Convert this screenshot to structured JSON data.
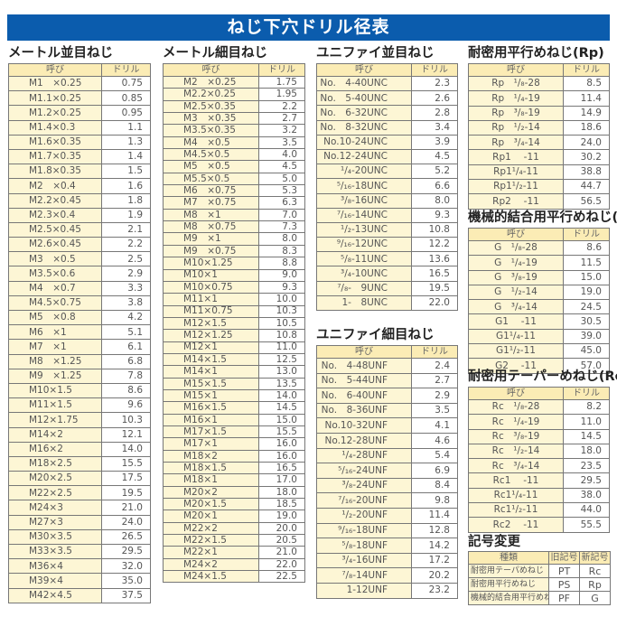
{
  "title": "ねじ下穴ドリル径表",
  "header_labels": {
    "name": "呼び",
    "drill": "ドリル"
  },
  "colors": {
    "banner": "#0b5cad",
    "name_cell": "#fdf6d5",
    "header_cell": "#fbecb5"
  },
  "tables": [
    {
      "id": "metric-coarse",
      "title": "メートル並目ねじ",
      "rows": [
        [
          "M1　×0.25",
          "0.75"
        ],
        [
          "M1.1×0.25",
          "0.85"
        ],
        [
          "M1.2×0.25",
          "0.95"
        ],
        [
          "M1.4×0.3",
          "1.1"
        ],
        [
          "M1.6×0.35",
          "1.3"
        ],
        [
          "M1.7×0.35",
          "1.4"
        ],
        [
          "M1.8×0.35",
          "1.5"
        ],
        [
          "M2　×0.4",
          "1.6"
        ],
        [
          "M2.2×0.45",
          "1.8"
        ],
        [
          "M2.3×0.4",
          "1.9"
        ],
        [
          "M2.5×0.45",
          "2.1"
        ],
        [
          "M2.6×0.45",
          "2.2"
        ],
        [
          "M3　×0.5",
          "2.5"
        ],
        [
          "M3.5×0.6",
          "2.9"
        ],
        [
          "M4　×0.7",
          "3.3"
        ],
        [
          "M4.5×0.75",
          "3.8"
        ],
        [
          "M5　×0.8",
          "4.2"
        ],
        [
          "M6　×1",
          "5.1"
        ],
        [
          "M7　×1",
          "6.1"
        ],
        [
          "M8　×1.25",
          "6.8"
        ],
        [
          "M9　×1.25",
          "7.8"
        ],
        [
          "M10×1.5",
          "8.6"
        ],
        [
          "M11×1.5",
          "9.6"
        ],
        [
          "M12×1.75",
          "10.3"
        ],
        [
          "M14×2",
          "12.1"
        ],
        [
          "M16×2",
          "14.0"
        ],
        [
          "M18×2.5",
          "15.5"
        ],
        [
          "M20×2.5",
          "17.5"
        ],
        [
          "M22×2.5",
          "19.5"
        ],
        [
          "M24×3",
          "21.0"
        ],
        [
          "M27×3",
          "24.0"
        ],
        [
          "M30×3.5",
          "26.5"
        ],
        [
          "M33×3.5",
          "29.5"
        ],
        [
          "M36×4",
          "32.0"
        ],
        [
          "M39×4",
          "35.0"
        ],
        [
          "M42×4.5",
          "37.5"
        ]
      ]
    },
    {
      "id": "metric-fine",
      "title": "メートル細目ねじ",
      "rows": [
        [
          "M2　×0.25",
          "1.75"
        ],
        [
          "M2.2×0.25",
          "1.95"
        ],
        [
          "M2.5×0.35",
          "2.2"
        ],
        [
          "M3　×0.35",
          "2.7"
        ],
        [
          "M3.5×0.35",
          "3.2"
        ],
        [
          "M4　×0.5",
          "3.5"
        ],
        [
          "M4.5×0.5",
          "4.0"
        ],
        [
          "M5　×0.5",
          "4.5"
        ],
        [
          "M5.5×0.5",
          "5.0"
        ],
        [
          "M6　×0.75",
          "5.3"
        ],
        [
          "M7　×0.75",
          "6.3"
        ],
        [
          "M8　×1",
          "7.0"
        ],
        [
          "M8　×0.75",
          "7.3"
        ],
        [
          "M9　×1",
          "8.0"
        ],
        [
          "M9　×0.75",
          "8.3"
        ],
        [
          "M10×1.25",
          "8.8"
        ],
        [
          "M10×1",
          "9.0"
        ],
        [
          "M10×0.75",
          "9.3"
        ],
        [
          "M11×1",
          "10.0"
        ],
        [
          "M11×0.75",
          "10.3"
        ],
        [
          "M12×1.5",
          "10.5"
        ],
        [
          "M12×1.25",
          "10.8"
        ],
        [
          "M12×1",
          "11.0"
        ],
        [
          "M14×1.5",
          "12.5"
        ],
        [
          "M14×1",
          "13.0"
        ],
        [
          "M15×1.5",
          "13.5"
        ],
        [
          "M15×1",
          "14.0"
        ],
        [
          "M16×1.5",
          "14.5"
        ],
        [
          "M16×1",
          "15.0"
        ],
        [
          "M17×1.5",
          "15.5"
        ],
        [
          "M17×1",
          "16.0"
        ],
        [
          "M18×2",
          "16.0"
        ],
        [
          "M18×1.5",
          "16.5"
        ],
        [
          "M18×1",
          "17.0"
        ],
        [
          "M20×2",
          "18.0"
        ],
        [
          "M20×1.5",
          "18.5"
        ],
        [
          "M20×1",
          "19.0"
        ],
        [
          "M22×2",
          "20.0"
        ],
        [
          "M22×1.5",
          "20.5"
        ],
        [
          "M22×1",
          "21.0"
        ],
        [
          "M24×2",
          "22.0"
        ],
        [
          "M24×1.5",
          "22.5"
        ]
      ]
    },
    {
      "id": "unc",
      "title": "ユニファイ並目ねじ",
      "rows": [
        [
          "No.　4-40UNC",
          "2.3"
        ],
        [
          "No.　5-40UNC",
          "2.6"
        ],
        [
          "No.　6-32UNC",
          "2.8"
        ],
        [
          "No.　8-32UNC",
          "3.4"
        ],
        [
          "No.10-24UNC",
          "3.9"
        ],
        [
          "No.12-24UNC",
          "4.5"
        ],
        [
          "¹/₄-20UNC",
          "5.2"
        ],
        [
          "⁵/₁₆-18UNC",
          "6.6"
        ],
        [
          "³/₈-16UNC",
          "8.0"
        ],
        [
          "⁷/₁₆-14UNC",
          "9.3"
        ],
        [
          "¹/₂-13UNC",
          "10.8"
        ],
        [
          "⁹/₁₆-12UNC",
          "12.2"
        ],
        [
          "⁵/₈-11UNC",
          "13.6"
        ],
        [
          "³/₄-10UNC",
          "16.5"
        ],
        [
          "⁷/₈-　9UNC",
          "19.5"
        ],
        [
          "1-　8UNC",
          "22.0"
        ]
      ]
    },
    {
      "id": "unf",
      "title": "ユニファイ細目ねじ",
      "rows": [
        [
          "No.　4-48UNF",
          "2.4"
        ],
        [
          "No.　5-44UNF",
          "2.7"
        ],
        [
          "No.　6-40UNF",
          "2.9"
        ],
        [
          "No.　8-36UNF",
          "3.5"
        ],
        [
          "No.10-32UNF",
          "4.1"
        ],
        [
          "No.12-28UNF",
          "4.6"
        ],
        [
          "¹/₄-28UNF",
          "5.4"
        ],
        [
          "⁵/₁₆-24UNF",
          "6.9"
        ],
        [
          "³/₈-24UNF",
          "8.4"
        ],
        [
          "⁷/₁₆-20UNF",
          "9.8"
        ],
        [
          "¹/₂-20UNF",
          "11.4"
        ],
        [
          "⁹/₁₆-18UNF",
          "12.8"
        ],
        [
          "⁵/₈-18UNF",
          "14.2"
        ],
        [
          "³/₄-16UNF",
          "17.2"
        ],
        [
          "⁷/₈-14UNF",
          "20.2"
        ],
        [
          "1-12UNF",
          "23.2"
        ]
      ]
    },
    {
      "id": "rp",
      "title": "耐密用平行めねじ(Rp)",
      "rows": [
        [
          "Rp　¹/₈-28",
          "8.5"
        ],
        [
          "Rp　¹/₄-19",
          "11.4"
        ],
        [
          "Rp　³/₈-19",
          "14.9"
        ],
        [
          "Rp　¹/₂-14",
          "18.6"
        ],
        [
          "Rp　³/₄-14",
          "24.0"
        ],
        [
          "Rp1　 -11",
          "30.2"
        ],
        [
          "Rp1¹/₄-11",
          "38.8"
        ],
        [
          "Rp1¹/₂-11",
          "44.7"
        ],
        [
          "Rp2　 -11",
          "56.5"
        ]
      ]
    },
    {
      "id": "g",
      "title": "機械的結合用平行めねじ(G)",
      "rows": [
        [
          "G　¹/₈-28",
          "8.6"
        ],
        [
          "G　¹/₄-19",
          "11.5"
        ],
        [
          "G　³/₈-19",
          "15.0"
        ],
        [
          "G　¹/₂-14",
          "19.0"
        ],
        [
          "G　³/₄-14",
          "24.5"
        ],
        [
          "G1　 -11",
          "30.5"
        ],
        [
          "G1¹/₄-11",
          "39.0"
        ],
        [
          "G1¹/₂-11",
          "45.0"
        ],
        [
          "G2　 -11",
          "57.0"
        ]
      ]
    },
    {
      "id": "rc",
      "title": "耐密用テーパーめねじ(Rc)",
      "rows": [
        [
          "Rc　¹/₈-28",
          "8.2"
        ],
        [
          "Rc　¹/₄-19",
          "11.0"
        ],
        [
          "Rc　³/₈-19",
          "14.5"
        ],
        [
          "Rc　¹/₂-14",
          "18.0"
        ],
        [
          "Rc　³/₄-14",
          "23.5"
        ],
        [
          "Rc1　 -11",
          "29.5"
        ],
        [
          "Rc1¹/₄-11",
          "38.0"
        ],
        [
          "Rc1¹/₂-11",
          "44.0"
        ],
        [
          "Rc2　 -11",
          "55.5"
        ]
      ]
    }
  ],
  "symbol_change": {
    "title": "記号変更",
    "headers": [
      "種類",
      "旧記号",
      "新記号"
    ],
    "rows": [
      [
        "耐密用テーパめねじ",
        "PT",
        "Rc"
      ],
      [
        "耐密用平行めねじ",
        "PS",
        "Rp"
      ],
      [
        "機械的結合用平行めねじ",
        "PF",
        "G"
      ]
    ]
  }
}
